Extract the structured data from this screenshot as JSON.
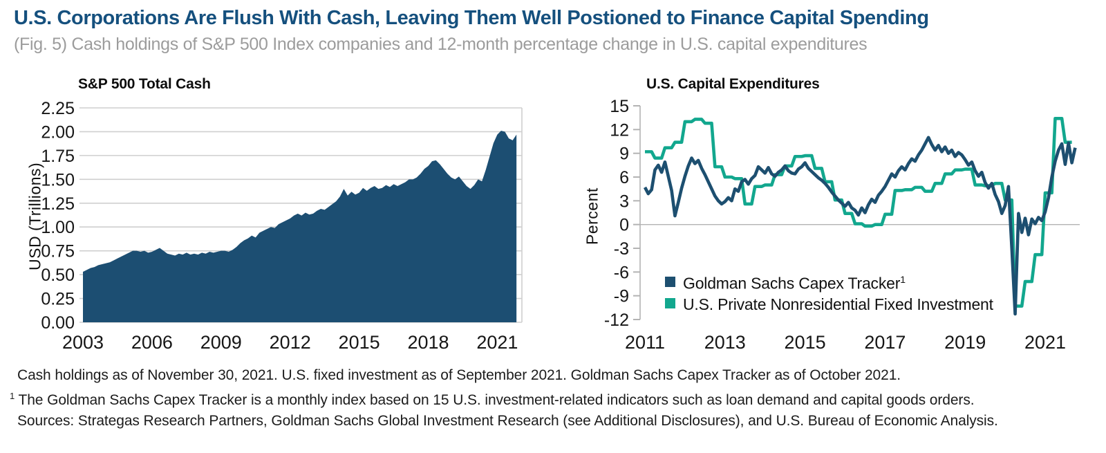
{
  "header": {
    "title": "U.S. Corporations Are Flush With Cash, Leaving Them Well Postioned to Finance Capital Spending",
    "subtitle": "(Fig. 5) Cash holdings of S&P 500 Index companies and 12-month percentage change in U.S. capital expenditures"
  },
  "colors": {
    "navy": "#1d4f70",
    "area_navy": "#1c4e72",
    "teal": "#12a78e",
    "gridline": "#cfcfcf",
    "axis_gray": "#b3b3b3",
    "title_blue": "#15507e",
    "subtitle_gray": "#9c9c9c"
  },
  "chart_data": [
    {
      "type": "area",
      "title": "S&P 500 Total Cash",
      "ylabel": "USD (Trillions)",
      "xlabel": "",
      "ylim": [
        0,
        2.25
      ],
      "xlim": [
        2003,
        2022
      ],
      "grid": "horizontal",
      "color": "#1c4e72",
      "x_ticks": [
        2003,
        2006,
        2009,
        2012,
        2015,
        2018,
        2021
      ],
      "x_tick_labels": [
        "2003",
        "2006",
        "2009",
        "2012",
        "2015",
        "2018",
        "2021"
      ],
      "y_ticks": [
        0,
        0.25,
        0.5,
        0.75,
        1,
        1.25,
        1.5,
        1.75,
        2,
        2.25
      ],
      "y_tick_labels": [
        "0.00",
        "0.25",
        "0.50",
        "0.75",
        "1.00",
        "1.25",
        "1.50",
        "1.75",
        "2.00",
        "2.25"
      ],
      "series_name": "S&P 500 total cash (USD trillions)",
      "x_start": 2003.0,
      "x_step_months": 2,
      "values": [
        0.53,
        0.55,
        0.57,
        0.58,
        0.6,
        0.61,
        0.62,
        0.63,
        0.65,
        0.67,
        0.69,
        0.71,
        0.73,
        0.75,
        0.75,
        0.74,
        0.75,
        0.73,
        0.74,
        0.76,
        0.78,
        0.75,
        0.72,
        0.71,
        0.7,
        0.72,
        0.71,
        0.73,
        0.71,
        0.72,
        0.71,
        0.73,
        0.72,
        0.74,
        0.73,
        0.74,
        0.75,
        0.75,
        0.74,
        0.76,
        0.79,
        0.83,
        0.86,
        0.88,
        0.91,
        0.89,
        0.94,
        0.96,
        0.98,
        1.0,
        0.99,
        1.03,
        1.05,
        1.07,
        1.09,
        1.12,
        1.14,
        1.12,
        1.15,
        1.13,
        1.14,
        1.17,
        1.19,
        1.18,
        1.21,
        1.24,
        1.27,
        1.32,
        1.4,
        1.33,
        1.37,
        1.34,
        1.36,
        1.41,
        1.38,
        1.41,
        1.43,
        1.4,
        1.41,
        1.44,
        1.42,
        1.45,
        1.43,
        1.45,
        1.47,
        1.5,
        1.5,
        1.52,
        1.56,
        1.61,
        1.64,
        1.69,
        1.7,
        1.66,
        1.61,
        1.56,
        1.52,
        1.5,
        1.53,
        1.48,
        1.43,
        1.4,
        1.44,
        1.5,
        1.48,
        1.6,
        1.74,
        1.88,
        1.97,
        2.01,
        2.0,
        1.93,
        1.91,
        1.97
      ]
    },
    {
      "type": "line",
      "title": "U.S. Capital Expenditures",
      "ylabel": "Percent",
      "xlabel": "",
      "ylim": [
        -12,
        15
      ],
      "xlim": [
        2011,
        2022
      ],
      "grid": "zero-line-only",
      "legend_position": "bottom-left",
      "x_ticks": [
        2011,
        2013,
        2015,
        2017,
        2019,
        2021
      ],
      "x_tick_labels": [
        "2011",
        "2013",
        "2015",
        "2017",
        "2019",
        "2021"
      ],
      "y_ticks": [
        -12,
        -9,
        -6,
        -3,
        0,
        3,
        6,
        9,
        12,
        15
      ],
      "y_tick_labels": [
        "-12",
        "-9",
        "-6",
        "-3",
        "0",
        "3",
        "6",
        "9",
        "12",
        "15"
      ],
      "series": [
        {
          "name": "Goldman Sachs Capex Tracker",
          "name_superscript": "1",
          "color": "#1d4f70",
          "x_start": 2011.0,
          "x_step_months": 1,
          "values": [
            4.7,
            3.9,
            4.4,
            6.9,
            7.5,
            6.6,
            7.9,
            6.1,
            4.3,
            1.1,
            2.8,
            4.6,
            6.1,
            7.4,
            8.4,
            7.7,
            8.1,
            7.1,
            6.3,
            5.4,
            4.5,
            3.6,
            3.0,
            2.6,
            2.9,
            3.4,
            3.0,
            4.5,
            4.2,
            5.4,
            5.7,
            5.1,
            5.8,
            6.2,
            7.3,
            6.9,
            6.5,
            7.2,
            6.4,
            6.1,
            6.6,
            6.9,
            7.4,
            6.8,
            6.5,
            6.4,
            7.0,
            7.3,
            7.8,
            7.1,
            6.7,
            6.3,
            5.9,
            5.6,
            5.2,
            4.7,
            4.1,
            3.6,
            3.1,
            2.7,
            2.3,
            2.8,
            2.1,
            1.8,
            1.2,
            2.1,
            1.5,
            2.5,
            3.2,
            2.8,
            3.7,
            4.2,
            4.8,
            5.6,
            6.4,
            6.0,
            6.8,
            7.3,
            6.9,
            7.7,
            8.3,
            8.0,
            8.8,
            9.4,
            10.2,
            11.0,
            10.1,
            9.4,
            10.0,
            9.2,
            9.8,
            9.0,
            9.4,
            8.6,
            9.1,
            8.8,
            8.2,
            7.5,
            7.9,
            6.8,
            6.1,
            6.6,
            5.3,
            4.6,
            5.2,
            3.8,
            2.9,
            1.4,
            2.4,
            4.8,
            -3.0,
            -11.3,
            1.4,
            -1.0,
            0.8,
            -1.3,
            0.7,
            0.1,
            0.9,
            0.5,
            1.6,
            3.4,
            6.0,
            8.0,
            9.4,
            10.2,
            7.6,
            10.3,
            7.8,
            9.7
          ]
        },
        {
          "name": "U.S. Private Nonresidential Fixed Investment",
          "name_superscript": "",
          "color": "#12a78e",
          "x_start": 2011.0,
          "x_step_months": 3,
          "render": "step",
          "values": [
            9.2,
            8.4,
            9.7,
            10.4,
            13.0,
            13.3,
            12.8,
            7.3,
            6.0,
            5.8,
            2.6,
            4.8,
            5.0,
            6.3,
            7.4,
            8.6,
            8.7,
            7.1,
            5.4,
            3.1,
            1.4,
            0.1,
            -0.2,
            0.0,
            1.3,
            4.3,
            4.4,
            4.7,
            4.2,
            5.2,
            6.4,
            6.9,
            7.0,
            5.0,
            4.9,
            5.2,
            3.1,
            -10.3,
            -7.2,
            -3.8,
            4.0,
            13.4,
            10.4
          ]
        }
      ]
    }
  ],
  "footer": {
    "as_of": "Cash holdings as of November 30, 2021. U.S. fixed investment as of September 2021. Goldman Sachs Capex Tracker as of October 2021.",
    "note_sup": "1",
    "note_text": " The Goldman Sachs Capex Tracker is a monthly index based on 15 U.S. investment-related indicators such as loan demand and capital goods orders.",
    "sources": "Sources: Strategas Research Partners, Goldman Sachs Global Investment Research (see Additional Disclosures), and U.S. Bureau of Economic Analysis."
  }
}
